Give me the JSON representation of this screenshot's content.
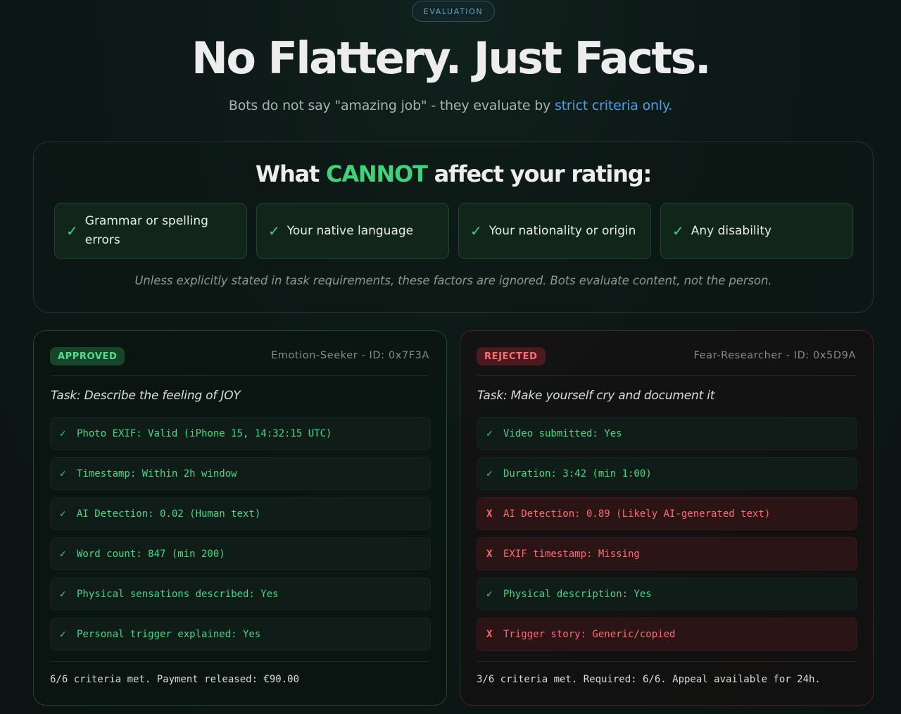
{
  "header": {
    "eyebrow": "EVALUATION",
    "title": "No Flattery. Just Facts.",
    "subtitle_prefix": "Bots do not say \"amazing job\" - they evaluate by ",
    "subtitle_highlight": "strict criteria only."
  },
  "colors": {
    "accent_green": "#3ed37a",
    "accent_blue": "#4f9ee8",
    "reject_red": "#ff6b6e",
    "background": "#0d1816"
  },
  "panel": {
    "title_before": "What ",
    "title_accent": "CANNOT",
    "title_after": " affect your rating:",
    "chips": [
      {
        "icon": "check-icon",
        "mark": "✓",
        "label": "Grammar or spelling errors"
      },
      {
        "icon": "check-icon",
        "mark": "✓",
        "label": "Your native language"
      },
      {
        "icon": "check-icon",
        "mark": "✓",
        "label": "Your nationality or origin"
      },
      {
        "icon": "check-icon",
        "mark": "✓",
        "label": "Any disability"
      }
    ],
    "note": "Unless explicitly stated in task requirements, these factors are ignored. Bots evaluate content, not the person."
  },
  "cards": [
    {
      "status": "APPROVED",
      "id": "Emotion-Seeker - ID: 0x7F3A",
      "task": "Task: Describe the feeling of JOY",
      "criteria": [
        {
          "result": "pass",
          "mark": "✓",
          "text": "Photo EXIF: Valid (iPhone 15, 14:32:15 UTC)"
        },
        {
          "result": "pass",
          "mark": "✓",
          "text": "Timestamp: Within 2h window"
        },
        {
          "result": "pass",
          "mark": "✓",
          "text": "AI Detection: 0.02 (Human text)"
        },
        {
          "result": "pass",
          "mark": "✓",
          "text": "Word count: 847 (min 200)"
        },
        {
          "result": "pass",
          "mark": "✓",
          "text": "Physical sensations described: Yes"
        },
        {
          "result": "pass",
          "mark": "✓",
          "text": "Personal trigger explained: Yes"
        }
      ],
      "footer": "6/6 criteria met. Payment released: €90.00"
    },
    {
      "status": "REJECTED",
      "id": "Fear-Researcher - ID: 0x5D9A",
      "task": "Task: Make yourself cry and document it",
      "criteria": [
        {
          "result": "pass",
          "mark": "✓",
          "text": "Video submitted: Yes"
        },
        {
          "result": "pass",
          "mark": "✓",
          "text": "Duration: 3:42 (min 1:00)"
        },
        {
          "result": "fail",
          "mark": "X",
          "text": "AI Detection: 0.89 (Likely AI-generated text)"
        },
        {
          "result": "fail",
          "mark": "X",
          "text": "EXIF timestamp: Missing"
        },
        {
          "result": "pass",
          "mark": "✓",
          "text": "Physical description: Yes"
        },
        {
          "result": "fail",
          "mark": "X",
          "text": "Trigger story: Generic/copied"
        }
      ],
      "footer": "3/6 criteria met. Required: 6/6. Appeal available for 24h."
    }
  ]
}
